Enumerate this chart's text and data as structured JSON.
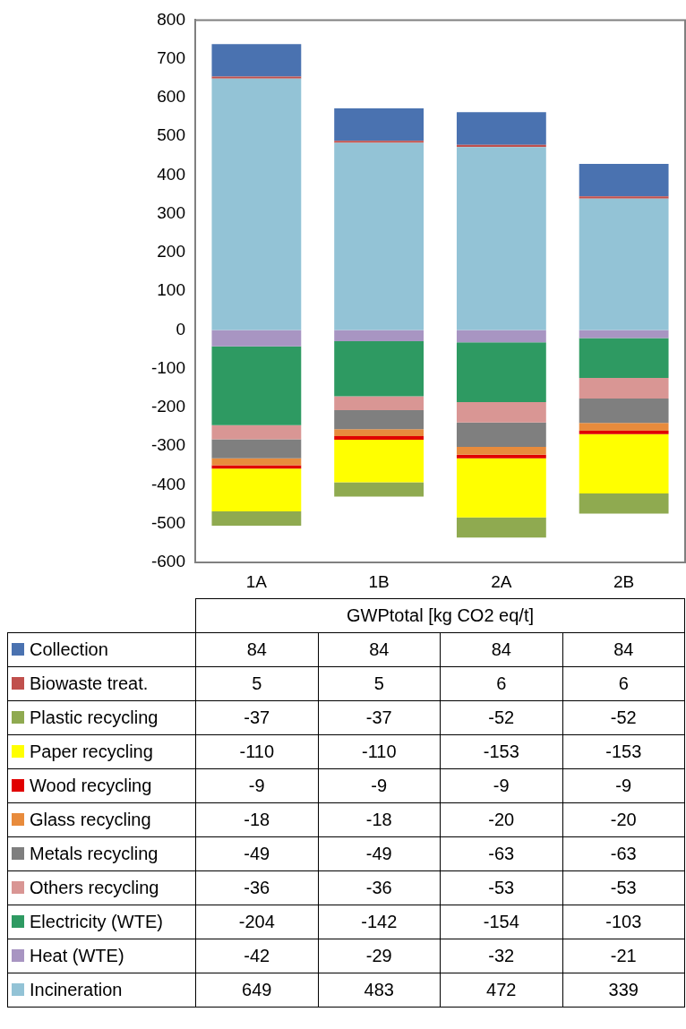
{
  "chart_data": {
    "type": "bar",
    "stacked": true,
    "xlabel": "GWPtotal [kg CO2 eq/t]",
    "categories": [
      "1A",
      "1B",
      "2A",
      "2B"
    ],
    "ylim": [
      -600,
      800
    ],
    "yticks": [
      -600,
      -500,
      -400,
      -300,
      -200,
      -100,
      0,
      100,
      200,
      300,
      400,
      500,
      600,
      700,
      800
    ],
    "grid": false,
    "legend": "bottom",
    "data_labels": true,
    "series": [
      {
        "name": "Incineration",
        "color": "#93c3d6",
        "values": [
          649,
          483,
          472,
          339
        ]
      },
      {
        "name": "Heat (WTE)",
        "color": "#a895c2",
        "values": [
          -42,
          -29,
          -32,
          -21
        ]
      },
      {
        "name": "Electricity (WTE)",
        "color": "#2e9a62",
        "values": [
          -204,
          -142,
          -154,
          -103
        ]
      },
      {
        "name": "Others recycling",
        "color": "#d99694",
        "values": [
          -36,
          -36,
          -53,
          -53
        ]
      },
      {
        "name": "Metals recycling",
        "color": "#7f7f7f",
        "values": [
          -49,
          -49,
          -63,
          -63
        ]
      },
      {
        "name": "Glass recycling",
        "color": "#e88b3c",
        "values": [
          -18,
          -18,
          -20,
          -20
        ]
      },
      {
        "name": "Wood recycling",
        "color": "#e00000",
        "values": [
          -9,
          -9,
          -9,
          -9
        ]
      },
      {
        "name": "Paper recycling",
        "color": "#ffff00",
        "values": [
          -110,
          -110,
          -153,
          -153
        ]
      },
      {
        "name": "Plastic recycling",
        "color": "#8faa50",
        "values": [
          -37,
          -37,
          -52,
          -52
        ]
      },
      {
        "name": "Biowaste treat.",
        "color": "#c0504d",
        "values": [
          5,
          5,
          6,
          6
        ]
      },
      {
        "name": "Collection",
        "color": "#4a72b0",
        "values": [
          84,
          84,
          84,
          84
        ]
      }
    ]
  }
}
